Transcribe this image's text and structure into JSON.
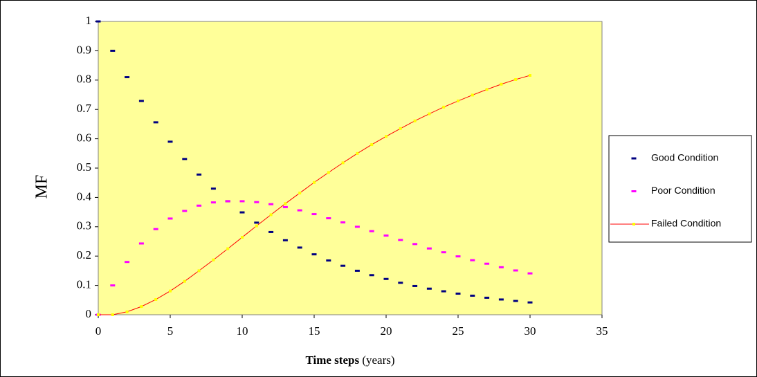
{
  "chart_data": {
    "type": "line",
    "xlabel": "Time steps",
    "xlabel_units": "(years)",
    "ylabel": "MF",
    "x": [
      0,
      1,
      2,
      3,
      4,
      5,
      6,
      7,
      8,
      9,
      10,
      11,
      12,
      13,
      14,
      15,
      16,
      17,
      18,
      19,
      20,
      21,
      22,
      23,
      24,
      25,
      26,
      27,
      28,
      29,
      30
    ],
    "series": [
      {
        "name": "Good Condition",
        "color": "#000080",
        "line": false,
        "values": [
          1,
          0.9,
          0.81,
          0.729,
          0.656,
          0.59,
          0.531,
          0.478,
          0.43,
          0.387,
          0.349,
          0.314,
          0.282,
          0.254,
          0.229,
          0.206,
          0.185,
          0.167,
          0.15,
          0.135,
          0.122,
          0.109,
          0.098,
          0.089,
          0.08,
          0.072,
          0.065,
          0.058,
          0.052,
          0.047,
          0.042
        ]
      },
      {
        "name": "Poor Condition",
        "color": "#ff00ff",
        "line": false,
        "values": [
          0,
          0.1,
          0.18,
          0.243,
          0.292,
          0.328,
          0.354,
          0.372,
          0.383,
          0.387,
          0.387,
          0.384,
          0.377,
          0.367,
          0.356,
          0.343,
          0.329,
          0.315,
          0.3,
          0.285,
          0.27,
          0.255,
          0.241,
          0.226,
          0.213,
          0.199,
          0.186,
          0.174,
          0.162,
          0.151,
          0.141
        ]
      },
      {
        "name": "Failed Condition",
        "color": "#ff0000",
        "line": true,
        "marker_color": "#ffff00",
        "values": [
          0,
          0,
          0.01,
          0.028,
          0.052,
          0.081,
          0.114,
          0.15,
          0.187,
          0.225,
          0.264,
          0.303,
          0.341,
          0.379,
          0.415,
          0.451,
          0.485,
          0.518,
          0.55,
          0.58,
          0.608,
          0.635,
          0.661,
          0.685,
          0.708,
          0.729,
          0.749,
          0.768,
          0.786,
          0.802,
          0.816
        ]
      }
    ],
    "xlim": [
      0,
      35
    ],
    "xticks": [
      0,
      5,
      10,
      15,
      20,
      25,
      30,
      35
    ],
    "ylim": [
      0,
      1
    ],
    "yticks": [
      0,
      0.1,
      0.2,
      0.3,
      0.4,
      0.5,
      0.6,
      0.7,
      0.8,
      0.9,
      1
    ],
    "plot_background": "#ffff99",
    "grid": false,
    "legend": "right"
  }
}
